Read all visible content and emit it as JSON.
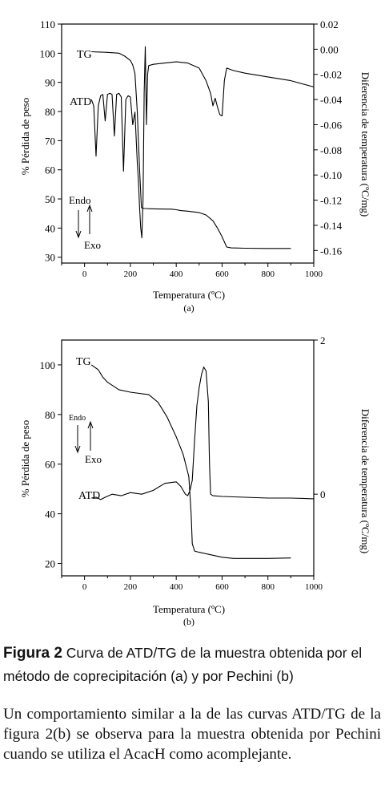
{
  "chart_data": [
    {
      "type": "line",
      "panel_label": "(a)",
      "xlabel": "Temperatura (ºC)",
      "ylabel": "% Pérdida de peso",
      "ylabel_right": "Diferencia de temperatura (ºC/mg)",
      "xlim": [
        -100,
        1000
      ],
      "ylim": [
        28,
        110
      ],
      "ylim_right": [
        -0.17,
        0.02
      ],
      "x_ticks": [
        "0",
        "200",
        "400",
        "600",
        "800",
        "1000"
      ],
      "y_ticks": [
        "30",
        "40",
        "50",
        "60",
        "70",
        "80",
        "90",
        "100",
        "110"
      ],
      "y_ticks_right": [
        "0.02",
        "0.00",
        "-0.02",
        "-0.04",
        "-0.06",
        "-0.08",
        "-0.10",
        "-0.12",
        "-0.14",
        "-0.16"
      ],
      "annotations": {
        "tg": "TG",
        "atd": "ATD",
        "endo": "Endo",
        "exo": "Exo"
      },
      "series": [
        {
          "name": "TG",
          "axis": "left",
          "x": [
            30,
            100,
            150,
            175,
            200,
            210,
            220,
            230,
            240,
            248,
            255,
            262,
            300,
            380,
            400,
            420,
            450,
            500,
            530,
            560,
            580,
            600,
            620,
            640,
            700,
            800,
            900
          ],
          "y": [
            100.5,
            100.3,
            100,
            99,
            97.5,
            96,
            93,
            80,
            60,
            47,
            46.8,
            46.7,
            46.6,
            46.5,
            46.3,
            46,
            45.8,
            45.3,
            44.5,
            42.5,
            40,
            37,
            33.5,
            33.2,
            33.1,
            33.0,
            33.0
          ]
        },
        {
          "name": "ATD",
          "axis": "right",
          "x": [
            30,
            40,
            50,
            60,
            70,
            80,
            90,
            100,
            110,
            120,
            130,
            140,
            150,
            160,
            170,
            180,
            190,
            200,
            210,
            220,
            230,
            235,
            240,
            245,
            250,
            255,
            260,
            265,
            270,
            275,
            280,
            300,
            350,
            400,
            450,
            500,
            530,
            550,
            560,
            570,
            580,
            590,
            600,
            610,
            620,
            650,
            700,
            800,
            900,
            1000
          ],
          "y": [
            -0.04,
            -0.045,
            -0.085,
            -0.045,
            -0.037,
            -0.036,
            -0.057,
            -0.036,
            -0.035,
            -0.036,
            -0.069,
            -0.036,
            -0.035,
            -0.038,
            -0.097,
            -0.04,
            -0.037,
            -0.038,
            -0.06,
            -0.05,
            -0.09,
            -0.104,
            -0.126,
            -0.142,
            -0.15,
            -0.12,
            -0.035,
            0.002,
            -0.06,
            -0.02,
            -0.013,
            -0.012,
            -0.011,
            -0.01,
            -0.011,
            -0.015,
            -0.025,
            -0.035,
            -0.045,
            -0.039,
            -0.046,
            -0.052,
            -0.053,
            -0.025,
            -0.015,
            -0.017,
            -0.019,
            -0.022,
            -0.025,
            -0.03
          ]
        }
      ]
    },
    {
      "type": "line",
      "panel_label": "(b)",
      "xlabel": "Temperatura (ºC)",
      "ylabel": "% Pérdida de peso",
      "ylabel_right": "Diferencia de temperatura (ºC/mg)",
      "xlim": [
        -100,
        1000
      ],
      "ylim": [
        15,
        110
      ],
      "ylim_right": [
        -1.06,
        2
      ],
      "x_ticks": [
        "0",
        "200",
        "400",
        "600",
        "800",
        "1000"
      ],
      "y_ticks": [
        "20",
        "40",
        "60",
        "80",
        "100"
      ],
      "y_ticks_right": [
        "0",
        "2"
      ],
      "annotations": {
        "tg": "TG",
        "atd": "ATD",
        "endo": "Endo",
        "exo": "Exo"
      },
      "series": [
        {
          "name": "TG",
          "axis": "left",
          "x": [
            30,
            60,
            80,
            100,
            150,
            200,
            280,
            320,
            360,
            400,
            430,
            455,
            465,
            470,
            480,
            500,
            550,
            600,
            650,
            700,
            800,
            900
          ],
          "y": [
            100,
            98,
            95,
            93,
            90,
            89,
            88,
            85,
            79,
            71,
            64,
            55,
            40,
            28,
            25,
            24.5,
            23.5,
            22.5,
            22,
            22,
            22,
            22.2
          ]
        },
        {
          "name": "ATD",
          "axis": "right",
          "x": [
            30,
            50,
            70,
            90,
            120,
            160,
            200,
            250,
            300,
            350,
            400,
            420,
            440,
            450,
            460,
            470,
            480,
            490,
            500,
            510,
            520,
            530,
            540,
            545,
            550,
            560,
            600,
            700,
            800,
            900,
            1000
          ],
          "y": [
            -0.05,
            -0.04,
            -0.07,
            -0.04,
            0.0,
            -0.02,
            0.02,
            0.0,
            0.05,
            0.14,
            0.16,
            0.1,
            0.0,
            -0.02,
            0.05,
            0.18,
            0.7,
            1.15,
            1.38,
            1.55,
            1.65,
            1.6,
            1.2,
            0.4,
            0.0,
            -0.02,
            -0.03,
            -0.04,
            -0.05,
            -0.05,
            -0.06
          ]
        }
      ]
    }
  ],
  "caption": {
    "figure_label": "Figura 2",
    "text": "Curva de ATD/TG de la muestra obtenida por el método de coprecipitación (a) y por Pechini (b)"
  },
  "body_text": "Un comportamiento similar a la de las curvas ATD/TG de la figura 2(b) se observa para la muestra obtenida por Pechini cuando se utiliza el AcacH como acomplejante."
}
